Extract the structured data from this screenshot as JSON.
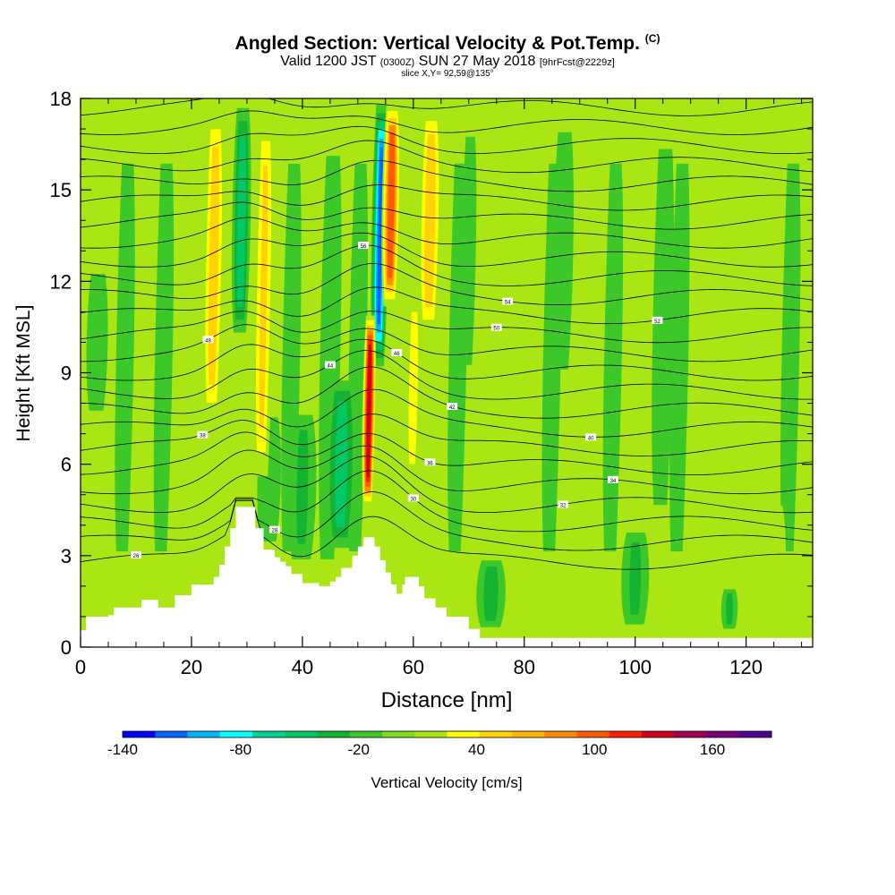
{
  "title": {
    "main": "Angled Section: Vertical Velocity & Pot.Temp.",
    "units": "(C)",
    "valid_prefix": "Valid 1200 JST",
    "valid_zulu": "(0300Z)",
    "valid_date": "SUN 27 May 2018",
    "forecast": "[9hrFcst@2229z]",
    "slice": "slice X,Y= 92,59@135°"
  },
  "chart_data": {
    "type": "heatmap",
    "xlabel": "Distance [nm]",
    "ylabel": "Height [Kft MSL]",
    "xlim": [
      0,
      132
    ],
    "ylim": [
      0,
      18
    ],
    "xticks": [
      0,
      20,
      40,
      60,
      80,
      100,
      120
    ],
    "yticks": [
      0,
      3,
      6,
      9,
      12,
      15,
      18
    ],
    "colorbar": {
      "label": "Vertical Velocity [cm/s]",
      "range": [
        -140,
        190
      ],
      "tick_values": [
        -140,
        -80,
        -20,
        40,
        100,
        160
      ],
      "tick_labels": [
        "-140",
        "-80",
        "-20",
        "40",
        "100",
        "160"
      ],
      "colors": [
        "#0000ff",
        "#0064ff",
        "#00b4ff",
        "#00ffff",
        "#00d296",
        "#00c864",
        "#14b432",
        "#3cc828",
        "#7ddc1e",
        "#aae614",
        "#ffff00",
        "#ffd200",
        "#ffb400",
        "#ff8c00",
        "#ff5a00",
        "#ff1e00",
        "#d2001e",
        "#a00050",
        "#780078",
        "#500090"
      ]
    },
    "terrain_kft": [
      [
        0,
        0.55
      ],
      [
        1,
        1
      ],
      [
        5,
        1.05
      ],
      [
        6,
        1.3
      ],
      [
        10,
        1.3
      ],
      [
        11,
        1.55
      ],
      [
        13,
        1.55
      ],
      [
        14,
        1.3
      ],
      [
        16,
        1.3
      ],
      [
        17,
        1.7
      ],
      [
        19,
        1.7
      ],
      [
        20,
        2.05
      ],
      [
        23,
        2.05
      ],
      [
        24,
        2.3
      ],
      [
        25,
        2.7
      ],
      [
        26,
        3.3
      ],
      [
        27,
        3.9
      ],
      [
        28,
        4.6
      ],
      [
        31,
        4.6
      ],
      [
        31.5,
        3.9
      ],
      [
        33,
        3.2
      ],
      [
        34.5,
        3.2
      ],
      [
        35,
        2.95
      ],
      [
        36,
        2.8
      ],
      [
        37,
        2.65
      ],
      [
        38,
        2.4
      ],
      [
        40,
        2.1
      ],
      [
        43,
        2.0
      ],
      [
        45,
        2.15
      ],
      [
        46,
        2.3
      ],
      [
        47,
        2.6
      ],
      [
        49,
        3.0
      ],
      [
        50,
        3.3
      ],
      [
        51,
        3.6
      ],
      [
        52.5,
        3.6
      ],
      [
        53,
        3.3
      ],
      [
        54,
        2.85
      ],
      [
        55,
        2.45
      ],
      [
        56,
        2.05
      ],
      [
        57,
        1.75
      ],
      [
        58,
        2.05
      ],
      [
        58.5,
        2.3
      ],
      [
        60,
        2.3
      ],
      [
        61,
        2.0
      ],
      [
        62,
        1.6
      ],
      [
        64,
        1.3
      ],
      [
        66,
        1.0
      ],
      [
        70,
        0.6
      ],
      [
        72,
        0.3
      ],
      [
        132,
        0.3
      ]
    ],
    "updrafts": [
      {
        "x": 52,
        "w": 0.9,
        "y0": 4.5,
        "y1": 11,
        "peak_cms": 150
      },
      {
        "x": 56,
        "w": 1.3,
        "y0": 11,
        "y1": 18,
        "peak_cms": 110
      },
      {
        "x": 63,
        "w": 1.8,
        "y0": 10,
        "y1": 18,
        "peak_cms": 70
      },
      {
        "x": 24,
        "w": 1.6,
        "y0": 7,
        "y1": 18,
        "peak_cms": 70
      },
      {
        "x": 33,
        "w": 1.6,
        "y0": 5,
        "y1": 18,
        "peak_cms": 60
      },
      {
        "x": 60,
        "w": 1.5,
        "y0": 5,
        "y1": 12,
        "peak_cms": 45
      },
      {
        "x": 80,
        "w": 3,
        "y0": 7,
        "y1": 13,
        "peak_cms": 25
      },
      {
        "x": 91,
        "w": 3,
        "y0": 6,
        "y1": 10,
        "peak_cms": 25
      },
      {
        "x": 125,
        "w": 2.5,
        "y0": 1,
        "y1": 5,
        "peak_cms": 30
      },
      {
        "x": 20,
        "w": 2,
        "y0": 2,
        "y1": 4,
        "peak_cms": 30
      },
      {
        "x": 26,
        "w": 1.5,
        "y0": 1.5,
        "y1": 4,
        "peak_cms": 30
      },
      {
        "x": 115,
        "w": 2,
        "y0": 8,
        "y1": 18,
        "peak_cms": 22
      },
      {
        "x": 122,
        "w": 2,
        "y0": 10,
        "y1": 18,
        "peak_cms": 22
      }
    ],
    "downdrafts": [
      {
        "x": 54,
        "w": 1.2,
        "y0": 9,
        "y1": 18,
        "peak_cms": -120
      },
      {
        "x": 29,
        "w": 1.4,
        "y0": 10,
        "y1": 18,
        "peak_cms": -70
      },
      {
        "x": 47,
        "w": 2.5,
        "y0": 3,
        "y1": 9,
        "peak_cms": -65
      },
      {
        "x": 40,
        "w": 2.5,
        "y0": 2.5,
        "y1": 8,
        "peak_cms": -40
      },
      {
        "x": 34,
        "w": 2.5,
        "y0": 3,
        "y1": 8,
        "peak_cms": -30
      },
      {
        "x": 74,
        "w": 2.5,
        "y0": 0.5,
        "y1": 3,
        "peak_cms": -45
      },
      {
        "x": 100,
        "w": 2.5,
        "y0": 0.5,
        "y1": 4,
        "peak_cms": -40
      },
      {
        "x": 117,
        "w": 1.5,
        "y0": 0.5,
        "y1": 2,
        "peak_cms": -40
      },
      {
        "x": 87,
        "w": 2.5,
        "y0": 8,
        "y1": 18,
        "peak_cms": -25
      },
      {
        "x": 105,
        "w": 2.5,
        "y0": 3,
        "y1": 18,
        "peak_cms": -25
      },
      {
        "x": 70,
        "w": 2,
        "y0": 8,
        "y1": 18,
        "peak_cms": -22
      },
      {
        "x": 3,
        "w": 3,
        "y0": 7,
        "y1": 13,
        "peak_cms": -22
      }
    ],
    "isentropes": {
      "base_temp_c": 26,
      "interval_c": 2,
      "count": 25,
      "labels": [
        "26",
        "28",
        "30",
        "32",
        "34",
        "36",
        "38",
        "40",
        "42",
        "44",
        "46",
        "48",
        "50",
        "52",
        "54",
        "56"
      ]
    }
  }
}
